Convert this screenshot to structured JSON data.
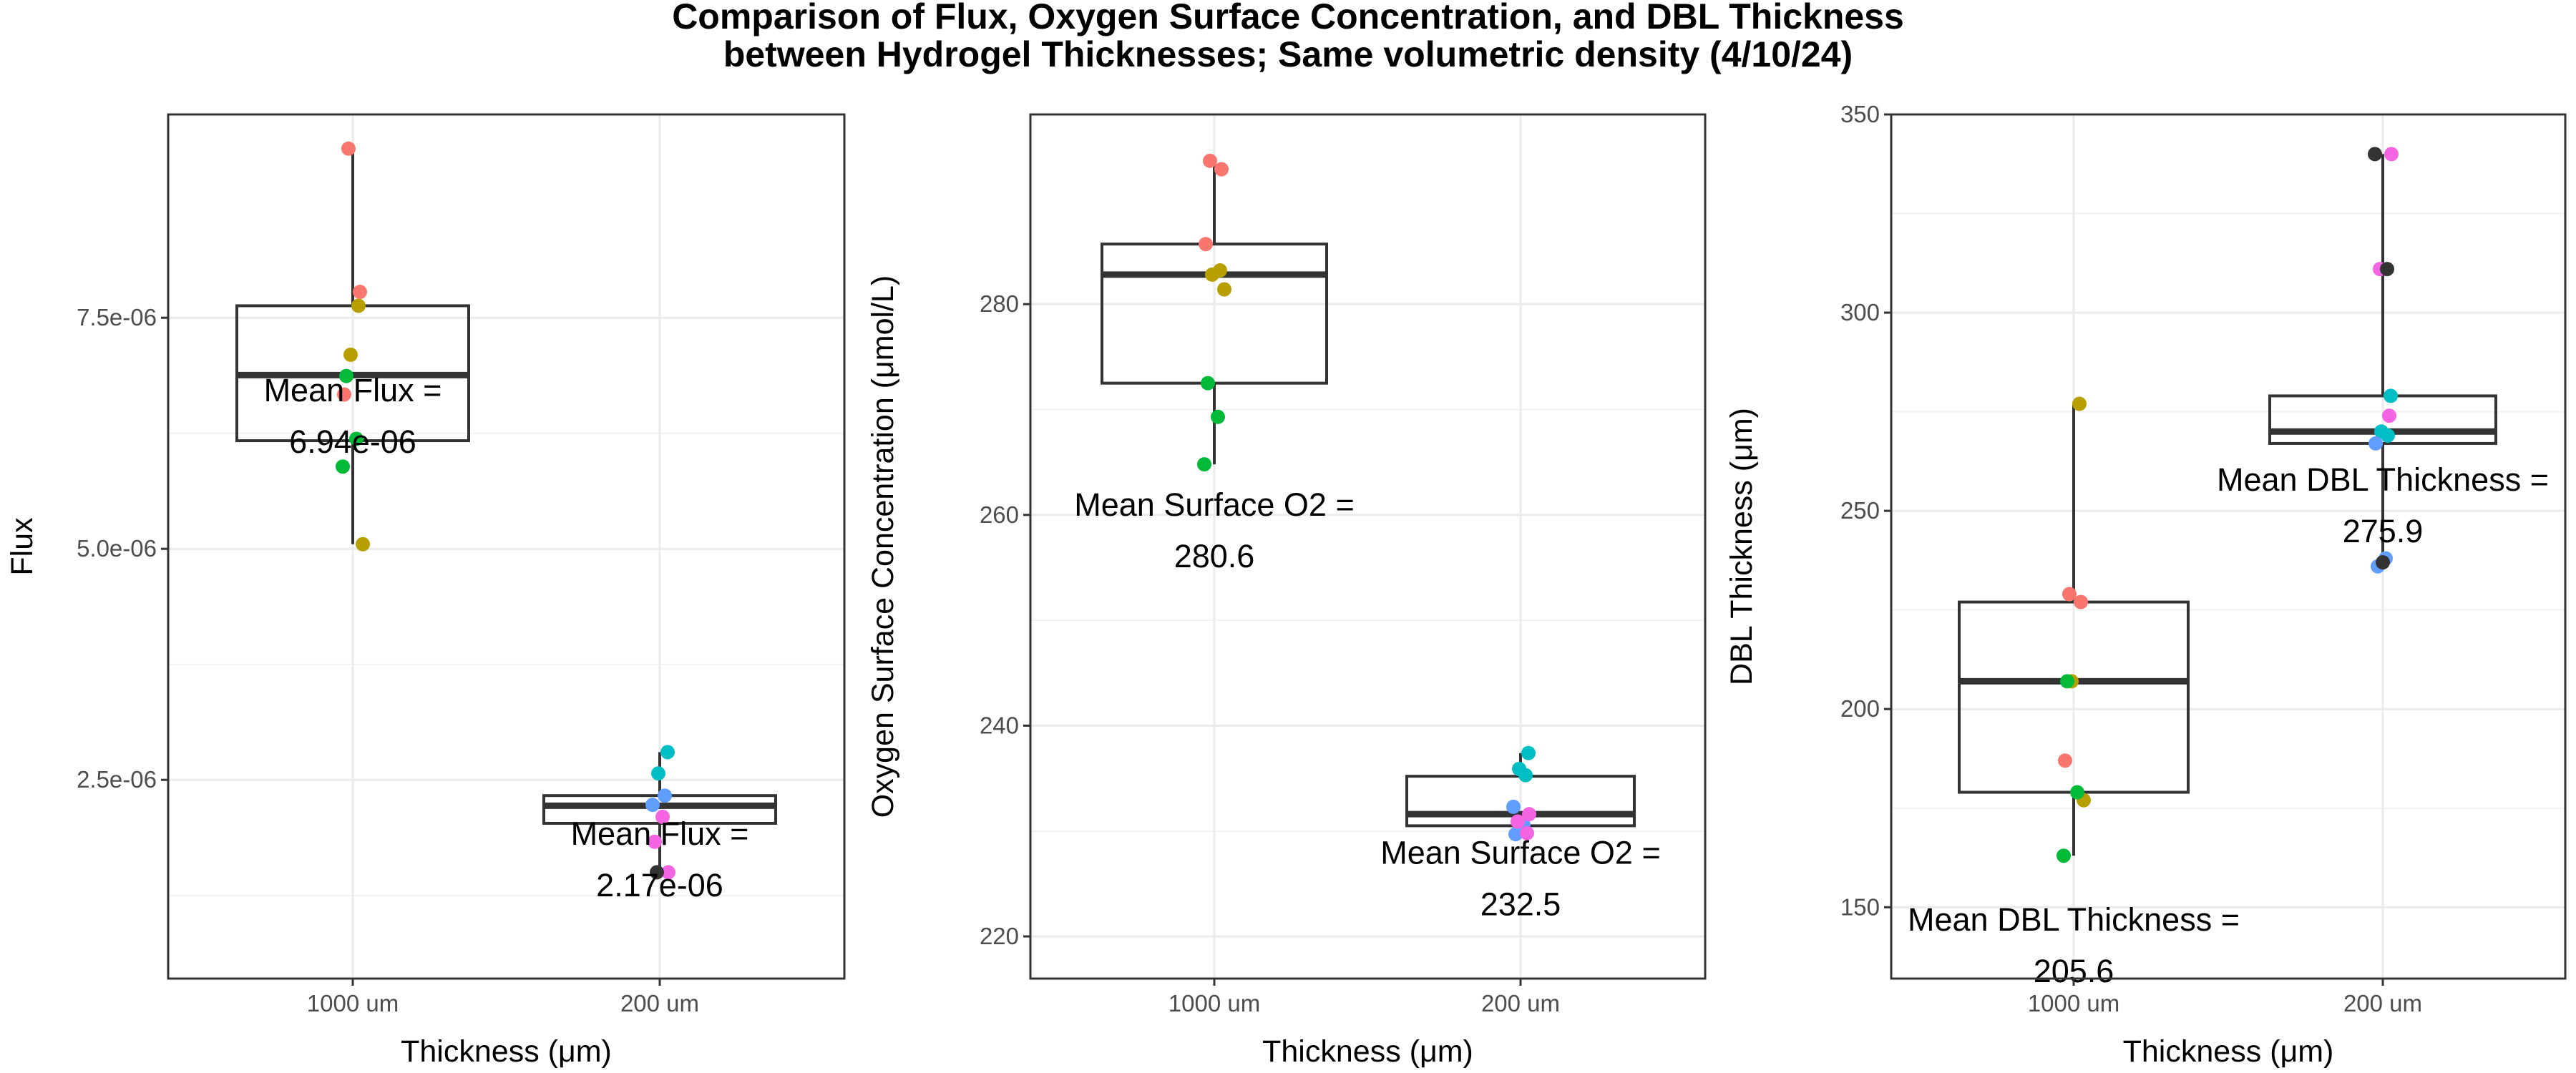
{
  "chart_data": {
    "title_line1": "Comparison of Flux, Oxygen Surface Concentration, and DBL Thickness",
    "title_line2": "between Hydrogel Thicknesses; Same volumetric density (4/10/24)",
    "panels": [
      {
        "type": "box",
        "xlabel": "Thickness (μm)",
        "ylabel": "Flux",
        "categories": [
          "1000 um",
          "200 um"
        ],
        "ylim": [
          3.5e-07,
          9.7e-06
        ],
        "yticks": [
          2.5e-06,
          5e-06,
          7.5e-06
        ],
        "ytick_labels": [
          "2.5e-06",
          "5.0e-06",
          "7.5e-06"
        ],
        "boxes": [
          {
            "category": "1000 um",
            "min": 5.05e-06,
            "q1": 6.17e-06,
            "median": 6.88e-06,
            "q3": 7.63e-06,
            "max": 9.32e-06
          },
          {
            "category": "200 um",
            "min": 1.5e-06,
            "q1": 2.03e-06,
            "median": 2.22e-06,
            "q3": 2.33e-06,
            "max": 2.8e-06
          }
        ],
        "points": [
          {
            "category": "1000 um",
            "y": 9.33e-06,
            "color": "#F8766D"
          },
          {
            "category": "1000 um",
            "y": 7.78e-06,
            "color": "#F8766D"
          },
          {
            "category": "1000 um",
            "y": 6.67e-06,
            "color": "#F8766D"
          },
          {
            "category": "1000 um",
            "y": 7.63e-06,
            "color": "#B79F00"
          },
          {
            "category": "1000 um",
            "y": 7.1e-06,
            "color": "#B79F00"
          },
          {
            "category": "1000 um",
            "y": 5.05e-06,
            "color": "#B79F00"
          },
          {
            "category": "1000 um",
            "y": 6.87e-06,
            "color": "#00BA38"
          },
          {
            "category": "1000 um",
            "y": 6.19e-06,
            "color": "#00BA38"
          },
          {
            "category": "1000 um",
            "y": 5.89e-06,
            "color": "#00BA38"
          },
          {
            "category": "200 um",
            "y": 2.8e-06,
            "color": "#00BFC4"
          },
          {
            "category": "200 um",
            "y": 2.57e-06,
            "color": "#00BFC4"
          },
          {
            "category": "200 um",
            "y": 2.33e-06,
            "color": "#619CFF"
          },
          {
            "category": "200 um",
            "y": 2.23e-06,
            "color": "#619CFF"
          },
          {
            "category": "200 um",
            "y": 2.1e-06,
            "color": "#F564E3"
          },
          {
            "category": "200 um",
            "y": 1.83e-06,
            "color": "#F564E3"
          },
          {
            "category": "200 um",
            "y": 1.5e-06,
            "color": "#F564E3"
          },
          {
            "category": "200 um",
            "y": 1.5e-06,
            "color": "#333333"
          }
        ],
        "annotations": [
          {
            "category": "1000 um",
            "y": 6.55e-06,
            "line1": "Mean Flux =",
            "line2": "6.94e-06"
          },
          {
            "category": "200 um",
            "y": 1.75e-06,
            "line1": "Mean Flux =",
            "line2": "2.17e-06"
          }
        ]
      },
      {
        "type": "box",
        "xlabel": "Thickness (μm)",
        "ylabel": "Oxygen Surface Concentration (μmol/L)",
        "categories": [
          "1000 um",
          "200 um"
        ],
        "ylim": [
          216,
          298
        ],
        "yticks": [
          220,
          240,
          260,
          280
        ],
        "ytick_labels": [
          "220",
          "240",
          "260",
          "280"
        ],
        "boxes": [
          {
            "category": "1000 um",
            "min": 264.8,
            "q1": 272.5,
            "median": 282.8,
            "q3": 285.7,
            "max": 293.8
          },
          {
            "category": "200 um",
            "min": 229.7,
            "q1": 230.5,
            "median": 231.6,
            "q3": 235.2,
            "max": 237.4
          }
        ],
        "points": [
          {
            "category": "1000 um",
            "y": 293.6,
            "color": "#F8766D"
          },
          {
            "category": "1000 um",
            "y": 292.8,
            "color": "#F8766D"
          },
          {
            "category": "1000 um",
            "y": 285.7,
            "color": "#F8766D"
          },
          {
            "category": "1000 um",
            "y": 283.2,
            "color": "#B79F00"
          },
          {
            "category": "1000 um",
            "y": 282.8,
            "color": "#B79F00"
          },
          {
            "category": "1000 um",
            "y": 281.4,
            "color": "#B79F00"
          },
          {
            "category": "1000 um",
            "y": 272.5,
            "color": "#00BA38"
          },
          {
            "category": "1000 um",
            "y": 269.3,
            "color": "#00BA38"
          },
          {
            "category": "1000 um",
            "y": 264.8,
            "color": "#00BA38"
          },
          {
            "category": "200 um",
            "y": 237.4,
            "color": "#00BFC4"
          },
          {
            "category": "200 um",
            "y": 235.9,
            "color": "#00BFC4"
          },
          {
            "category": "200 um",
            "y": 235.3,
            "color": "#00BFC4"
          },
          {
            "category": "200 um",
            "y": 232.3,
            "color": "#619CFF"
          },
          {
            "category": "200 um",
            "y": 230.6,
            "color": "#619CFF"
          },
          {
            "category": "200 um",
            "y": 229.7,
            "color": "#619CFF"
          },
          {
            "category": "200 um",
            "y": 231.6,
            "color": "#F564E3"
          },
          {
            "category": "200 um",
            "y": 230.9,
            "color": "#F564E3"
          },
          {
            "category": "200 um",
            "y": 229.8,
            "color": "#F564E3"
          }
        ],
        "annotations": [
          {
            "category": "1000 um",
            "y": 259.5,
            "line1": "Mean Surface O2 =",
            "line2": "280.6"
          },
          {
            "category": "200 um",
            "y": 226.5,
            "line1": "Mean Surface O2 =",
            "line2": "232.5"
          }
        ]
      },
      {
        "type": "box",
        "xlabel": "Thickness (μm)",
        "ylabel": "DBL Thickness (μm)",
        "categories": [
          "1000 um",
          "200 um"
        ],
        "ylim": [
          132,
          350
        ],
        "yticks": [
          150,
          200,
          250,
          300,
          350
        ],
        "ytick_labels": [
          "150",
          "200",
          "250",
          "300",
          "350"
        ],
        "boxes": [
          {
            "category": "1000 um",
            "min": 163,
            "q1": 179,
            "median": 207,
            "q3": 227,
            "max": 277
          },
          {
            "category": "200 um",
            "min": 236,
            "q1": 267,
            "median": 270,
            "q3": 279,
            "max": 340
          }
        ],
        "points": [
          {
            "category": "1000 um",
            "y": 229,
            "color": "#F8766D"
          },
          {
            "category": "1000 um",
            "y": 227,
            "color": "#F8766D"
          },
          {
            "category": "1000 um",
            "y": 187,
            "color": "#F8766D"
          },
          {
            "category": "1000 um",
            "y": 277,
            "color": "#B79F00"
          },
          {
            "category": "1000 um",
            "y": 207,
            "color": "#B79F00"
          },
          {
            "category": "1000 um",
            "y": 177,
            "color": "#B79F00"
          },
          {
            "category": "1000 um",
            "y": 207,
            "color": "#00BA38"
          },
          {
            "category": "1000 um",
            "y": 179,
            "color": "#00BA38"
          },
          {
            "category": "1000 um",
            "y": 163,
            "color": "#00BA38"
          },
          {
            "category": "200 um",
            "y": 279,
            "color": "#00BFC4"
          },
          {
            "category": "200 um",
            "y": 270,
            "color": "#00BFC4"
          },
          {
            "category": "200 um",
            "y": 269,
            "color": "#00BFC4"
          },
          {
            "category": "200 um",
            "y": 267,
            "color": "#619CFF"
          },
          {
            "category": "200 um",
            "y": 238,
            "color": "#619CFF"
          },
          {
            "category": "200 um",
            "y": 236,
            "color": "#619CFF"
          },
          {
            "category": "200 um",
            "y": 340,
            "color": "#F564E3"
          },
          {
            "category": "200 um",
            "y": 311,
            "color": "#F564E3"
          },
          {
            "category": "200 um",
            "y": 274,
            "color": "#F564E3"
          },
          {
            "category": "200 um",
            "y": 340,
            "color": "#333333"
          },
          {
            "category": "200 um",
            "y": 311,
            "color": "#333333"
          },
          {
            "category": "200 um",
            "y": 237,
            "color": "#333333"
          }
        ],
        "annotations": [
          {
            "category": "1000 um",
            "y": 143,
            "line1": "Mean DBL Thickness =",
            "line2": "205.6"
          },
          {
            "category": "200 um",
            "y": 254,
            "line1": "Mean DBL Thickness =",
            "line2": "275.9"
          }
        ]
      }
    ]
  }
}
